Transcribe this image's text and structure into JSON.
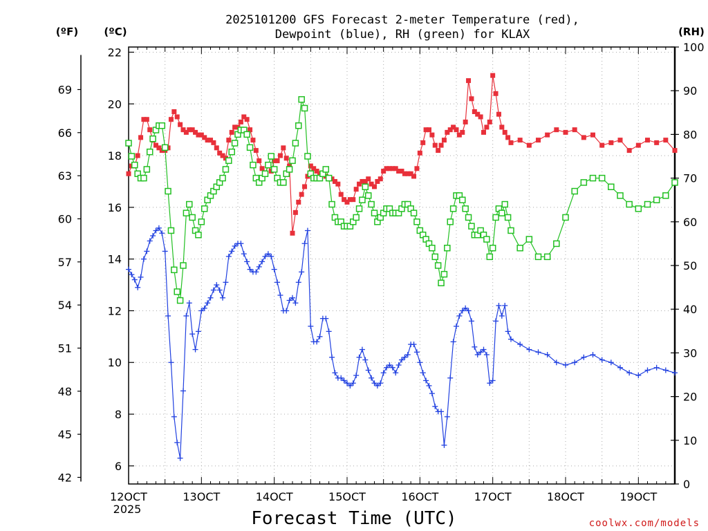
{
  "chart_data": {
    "type": "line",
    "title_lines": [
      "2025101200 GFS Forecast 2-meter Temperature (red),",
      "Dewpoint (blue), RH (green) for KLAX"
    ],
    "xlabel": "Forecast Time (UTC)",
    "credit": "coolwx.com/models",
    "x_unit": "hours",
    "x_ticks": [
      {
        "x": 0,
        "label": "12OCT",
        "sublabel": "2025"
      },
      {
        "x": 24,
        "label": "13OCT"
      },
      {
        "x": 48,
        "label": "14OCT"
      },
      {
        "x": 72,
        "label": "15OCT"
      },
      {
        "x": 96,
        "label": "16OCT"
      },
      {
        "x": 120,
        "label": "17OCT"
      },
      {
        "x": 144,
        "label": "18OCT"
      },
      {
        "x": 168,
        "label": "19OCT"
      }
    ],
    "xlim": [
      0,
      180
    ],
    "left_axis": {
      "unit_label": "(ºC)",
      "ylim": [
        5.3,
        22.2
      ],
      "ticks": [
        6,
        8,
        10,
        12,
        14,
        16,
        18,
        20,
        22
      ]
    },
    "f_axis": {
      "unit_label": "(ºF)",
      "ticks": [
        42,
        45,
        48,
        51,
        54,
        57,
        60,
        63,
        66,
        69
      ]
    },
    "right_axis": {
      "unit_label": "(RH)",
      "ylim": [
        0,
        100
      ],
      "ticks": [
        0,
        10,
        20,
        30,
        40,
        50,
        60,
        70,
        80,
        90,
        100
      ]
    },
    "grid": true,
    "series": [
      {
        "name": "Temperature (red)",
        "color": "#e8303a",
        "marker": "filled-square",
        "axis": "left",
        "x": [
          0,
          1,
          2,
          3,
          4,
          5,
          6,
          7,
          8,
          9,
          10,
          11,
          12,
          13,
          14,
          15,
          16,
          17,
          18,
          19,
          20,
          21,
          22,
          23,
          24,
          25,
          26,
          27,
          28,
          29,
          30,
          31,
          32,
          33,
          34,
          35,
          36,
          37,
          38,
          39,
          40,
          41,
          42,
          43,
          44,
          45,
          46,
          47,
          48,
          49,
          50,
          51,
          52,
          53,
          54,
          55,
          56,
          57,
          58,
          59,
          60,
          61,
          62,
          63,
          64,
          65,
          66,
          67,
          68,
          69,
          70,
          71,
          72,
          73,
          74,
          75,
          76,
          77,
          78,
          79,
          80,
          81,
          82,
          83,
          84,
          85,
          86,
          87,
          88,
          89,
          90,
          91,
          92,
          93,
          94,
          95,
          96,
          97,
          98,
          99,
          100,
          101,
          102,
          103,
          104,
          105,
          106,
          107,
          108,
          109,
          110,
          111,
          112,
          113,
          114,
          115,
          116,
          117,
          118,
          119,
          120,
          121,
          122,
          123,
          124,
          125,
          126,
          129,
          132,
          135,
          138,
          141,
          144,
          147,
          150,
          153,
          156,
          159,
          162,
          165,
          168,
          171,
          174,
          177,
          180
        ],
        "values": [
          17.3,
          17.6,
          17.6,
          18.0,
          18.7,
          19.4,
          19.4,
          19.0,
          18.6,
          18.4,
          18.3,
          18.2,
          18.2,
          18.3,
          19.4,
          19.7,
          19.5,
          19.2,
          19.0,
          18.9,
          19.0,
          19.0,
          18.9,
          18.8,
          18.8,
          18.7,
          18.6,
          18.6,
          18.5,
          18.3,
          18.1,
          18.0,
          17.9,
          18.6,
          18.9,
          19.1,
          19.1,
          19.3,
          19.5,
          19.4,
          19.0,
          18.6,
          18.2,
          17.8,
          17.5,
          17.3,
          17.6,
          17.4,
          17.8,
          17.8,
          18.0,
          18.3,
          17.9,
          17.6,
          15.0,
          15.8,
          16.2,
          16.5,
          16.8,
          17.2,
          17.6,
          17.5,
          17.4,
          17.3,
          17.3,
          17.2,
          17.1,
          17.1,
          17.0,
          16.9,
          16.5,
          16.3,
          16.2,
          16.3,
          16.3,
          16.7,
          16.9,
          17.0,
          17.0,
          17.1,
          16.9,
          16.8,
          17.0,
          17.1,
          17.4,
          17.5,
          17.5,
          17.5,
          17.5,
          17.4,
          17.4,
          17.3,
          17.3,
          17.3,
          17.2,
          17.5,
          18.1,
          18.5,
          19.0,
          19.0,
          18.8,
          18.4,
          18.2,
          18.4,
          18.6,
          18.9,
          19.0,
          19.1,
          19.0,
          18.8,
          18.9,
          19.3,
          20.9,
          20.2,
          19.7,
          19.6,
          19.5,
          18.9,
          19.1,
          19.3,
          21.1,
          20.4,
          19.6,
          19.1,
          18.9,
          18.7,
          18.5,
          18.6,
          18.4,
          18.6,
          18.8,
          19.0,
          18.9,
          19.0,
          18.7,
          18.8,
          18.4,
          18.5,
          18.6,
          18.2,
          18.4,
          18.6,
          18.5,
          18.6,
          18.2
        ]
      },
      {
        "name": "Dewpoint (blue)",
        "color": "#2040e0",
        "marker": "plus",
        "axis": "left",
        "x": [
          0,
          1,
          2,
          3,
          4,
          5,
          6,
          7,
          8,
          9,
          10,
          11,
          12,
          13,
          14,
          15,
          16,
          17,
          18,
          19,
          20,
          21,
          22,
          23,
          24,
          25,
          26,
          27,
          28,
          29,
          30,
          31,
          32,
          33,
          34,
          35,
          36,
          37,
          38,
          39,
          40,
          41,
          42,
          43,
          44,
          45,
          46,
          47,
          48,
          49,
          50,
          51,
          52,
          53,
          54,
          55,
          56,
          57,
          58,
          59,
          60,
          61,
          62,
          63,
          64,
          65,
          66,
          67,
          68,
          69,
          70,
          71,
          72,
          73,
          74,
          75,
          76,
          77,
          78,
          79,
          80,
          81,
          82,
          83,
          84,
          85,
          86,
          87,
          88,
          89,
          90,
          91,
          92,
          93,
          94,
          95,
          96,
          97,
          98,
          99,
          100,
          101,
          102,
          103,
          104,
          105,
          106,
          107,
          108,
          109,
          110,
          111,
          112,
          113,
          114,
          115,
          116,
          117,
          118,
          119,
          120,
          121,
          122,
          123,
          124,
          125,
          126,
          129,
          132,
          135,
          138,
          141,
          144,
          147,
          150,
          153,
          156,
          159,
          162,
          165,
          168,
          171,
          174,
          177,
          180
        ],
        "values": [
          13.6,
          13.4,
          13.2,
          12.9,
          13.3,
          14.0,
          14.3,
          14.7,
          14.9,
          15.1,
          15.2,
          15.0,
          14.3,
          11.8,
          10.0,
          7.9,
          6.9,
          6.3,
          8.9,
          11.8,
          12.3,
          11.1,
          10.5,
          11.2,
          12.0,
          12.1,
          12.3,
          12.5,
          12.8,
          13.0,
          12.8,
          12.5,
          13.1,
          14.1,
          14.3,
          14.5,
          14.6,
          14.6,
          14.2,
          13.9,
          13.6,
          13.5,
          13.5,
          13.7,
          13.9,
          14.1,
          14.2,
          14.1,
          13.6,
          13.1,
          12.6,
          12.0,
          12.0,
          12.4,
          12.5,
          12.3,
          13.1,
          13.5,
          14.6,
          15.1,
          11.4,
          10.8,
          10.8,
          11.0,
          11.7,
          11.7,
          11.2,
          10.2,
          9.6,
          9.4,
          9.4,
          9.3,
          9.2,
          9.1,
          9.2,
          9.5,
          10.2,
          10.5,
          10.1,
          9.7,
          9.4,
          9.2,
          9.1,
          9.2,
          9.6,
          9.8,
          9.9,
          9.8,
          9.6,
          9.9,
          10.1,
          10.2,
          10.3,
          10.7,
          10.7,
          10.4,
          10.0,
          9.6,
          9.3,
          9.1,
          8.8,
          8.3,
          8.1,
          8.1,
          6.8,
          7.9,
          9.4,
          10.8,
          11.4,
          11.8,
          12.0,
          12.1,
          12.0,
          11.6,
          10.6,
          10.3,
          10.4,
          10.5,
          10.3,
          9.2,
          9.3,
          11.6,
          12.2,
          11.8,
          12.2,
          11.2,
          10.9,
          10.7,
          10.5,
          10.4,
          10.3,
          10.0,
          9.9,
          10.0,
          10.2,
          10.3,
          10.1,
          10.0,
          9.8,
          9.6,
          9.5,
          9.7,
          9.8,
          9.7,
          9.6
        ]
      },
      {
        "name": "RH (green)",
        "color": "#22c022",
        "marker": "open-square",
        "axis": "right",
        "x": [
          0,
          1,
          2,
          3,
          4,
          5,
          6,
          7,
          8,
          9,
          10,
          11,
          12,
          13,
          14,
          15,
          16,
          17,
          18,
          19,
          20,
          21,
          22,
          23,
          24,
          25,
          26,
          27,
          28,
          29,
          30,
          31,
          32,
          33,
          34,
          35,
          36,
          37,
          38,
          39,
          40,
          41,
          42,
          43,
          44,
          45,
          46,
          47,
          48,
          49,
          50,
          51,
          52,
          53,
          54,
          55,
          56,
          57,
          58,
          59,
          60,
          61,
          62,
          63,
          64,
          65,
          66,
          67,
          68,
          69,
          70,
          71,
          72,
          73,
          74,
          75,
          76,
          77,
          78,
          79,
          80,
          81,
          82,
          83,
          84,
          85,
          86,
          87,
          88,
          89,
          90,
          91,
          92,
          93,
          94,
          95,
          96,
          97,
          98,
          99,
          100,
          101,
          102,
          103,
          104,
          105,
          106,
          107,
          108,
          109,
          110,
          111,
          112,
          113,
          114,
          115,
          116,
          117,
          118,
          119,
          120,
          121,
          122,
          123,
          124,
          125,
          126,
          129,
          132,
          135,
          138,
          141,
          144,
          147,
          150,
          153,
          156,
          159,
          162,
          165,
          168,
          171,
          174,
          177,
          180
        ],
        "values": [
          78,
          75,
          73,
          71,
          70,
          70,
          72,
          76,
          79,
          81,
          82,
          82,
          77,
          67,
          58,
          49,
          44,
          42,
          50,
          62,
          64,
          61,
          58,
          57,
          60,
          63,
          65,
          66,
          67,
          68,
          69,
          70,
          72,
          74,
          76,
          78,
          80,
          81,
          81,
          80,
          77,
          73,
          70,
          69,
          70,
          71,
          73,
          75,
          72,
          70,
          69,
          69,
          71,
          72,
          74,
          78,
          82,
          88,
          86,
          75,
          71,
          70,
          70,
          70,
          71,
          72,
          70,
          64,
          61,
          60,
          60,
          59,
          59,
          59,
          60,
          61,
          63,
          65,
          68,
          66,
          64,
          62,
          60,
          61,
          62,
          63,
          63,
          62,
          62,
          62,
          63,
          64,
          64,
          63,
          62,
          60,
          58,
          57,
          56,
          55,
          54,
          52,
          50,
          46,
          48,
          54,
          60,
          63,
          66,
          66,
          65,
          63,
          61,
          59,
          57,
          57,
          58,
          57,
          56,
          52,
          54,
          61,
          63,
          62,
          64,
          61,
          58,
          54,
          56,
          52,
          52,
          55,
          61,
          67,
          69,
          70,
          70,
          68,
          66,
          64,
          63,
          64,
          65,
          66,
          69
        ]
      }
    ]
  }
}
